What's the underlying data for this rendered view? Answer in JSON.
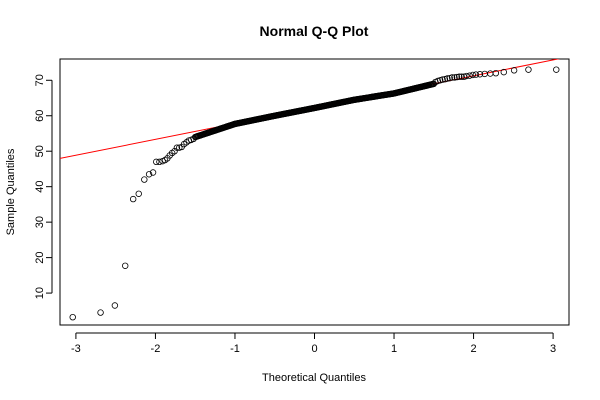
{
  "chart_data": {
    "type": "scatter",
    "title": "Normal Q-Q Plot",
    "xlabel": "Theoretical Quantiles",
    "ylabel": "Sample Quantiles",
    "xlim": [
      -3.2,
      3.2
    ],
    "ylim": [
      1,
      76
    ],
    "xticks": [
      -3,
      -2,
      -1,
      0,
      1,
      2,
      3
    ],
    "yticks": [
      10,
      20,
      30,
      40,
      50,
      60,
      70
    ],
    "reference_line": {
      "color": "#ff0000",
      "intercept": 62.3,
      "slope": 4.48
    },
    "point_color": "#000000",
    "tail_points": {
      "x": [
        -3.04,
        -2.69,
        -2.51,
        -2.38,
        -2.28,
        -2.21,
        -2.14,
        -2.08,
        -2.03,
        -1.99,
        -1.95,
        -1.91,
        -1.88,
        -1.85,
        -1.82,
        -1.79,
        -1.76,
        -1.73,
        -1.7,
        -1.67,
        -1.64,
        -1.61,
        -1.58,
        -1.55,
        -1.52
      ],
      "y": [
        3.2,
        4.5,
        6.5,
        17.7,
        36.5,
        38.0,
        42.0,
        43.5,
        44.0,
        47.0,
        47.0,
        47.2,
        47.5,
        48.0,
        48.8,
        49.5,
        50.0,
        51.0,
        51.0,
        51.2,
        52.0,
        52.5,
        53.0,
        53.2,
        53.5
      ]
    },
    "body_points": {
      "x_start": -1.5,
      "x_end": 1.5,
      "count": 300,
      "knots_x": [
        -1.5,
        -1.0,
        -0.5,
        0,
        0.5,
        1.0,
        1.5
      ],
      "knots_y": [
        54.0,
        57.7,
        60.0,
        62.2,
        64.5,
        66.3,
        69.0
      ]
    },
    "upper_points": {
      "x": [
        1.52,
        1.55,
        1.58,
        1.61,
        1.64,
        1.67,
        1.7,
        1.73,
        1.76,
        1.79,
        1.82,
        1.85,
        1.88,
        1.91,
        1.95,
        1.99,
        2.03,
        2.08,
        2.14,
        2.21,
        2.28,
        2.38,
        2.51,
        2.69,
        3.04
      ],
      "y": [
        69.5,
        69.8,
        70.0,
        70.2,
        70.3,
        70.5,
        70.6,
        70.8,
        70.8,
        70.9,
        71.0,
        71.0,
        71.0,
        71.2,
        71.3,
        71.5,
        71.6,
        71.7,
        71.8,
        71.9,
        72.0,
        72.3,
        72.8,
        73.0,
        73.0
      ]
    }
  }
}
